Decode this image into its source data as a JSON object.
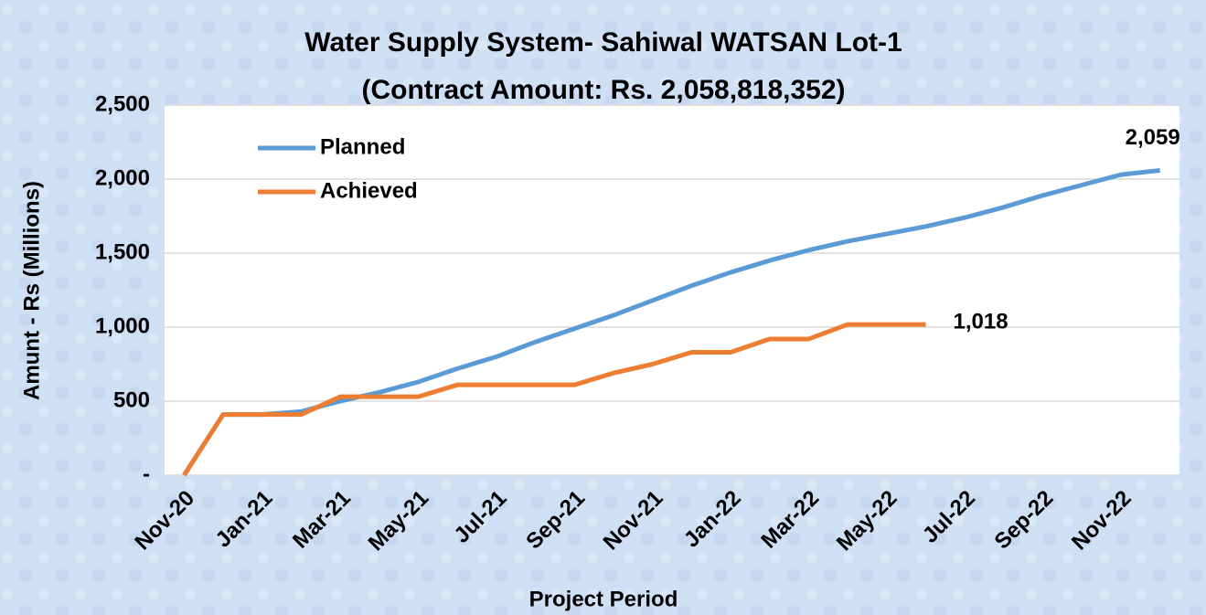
{
  "chart_data": {
    "type": "line",
    "title": "Water Supply System- Sahiwal WATSAN Lot-1",
    "subtitle": "(Contract Amount: Rs. 2,058,818,352)",
    "x_label": "Project Period",
    "y_label": "Amunt - Rs (Millions)",
    "categories": [
      "Nov-20",
      null,
      "Jan-21",
      null,
      "Mar-21",
      null,
      "May-21",
      null,
      "Jul-21",
      null,
      "Sep-21",
      null,
      "Nov-21",
      null,
      "Jan-22",
      null,
      "Mar-22",
      null,
      "May-22",
      null,
      "Jul-22",
      null,
      "Sep-22",
      null,
      "Nov-22",
      null
    ],
    "series": [
      {
        "name": "Planned",
        "color": "#5b9bd5",
        "values": [
          0,
          410,
          410,
          430,
          500,
          560,
          630,
          720,
          800,
          900,
          990,
          1080,
          1180,
          1280,
          1370,
          1450,
          1520,
          1580,
          1630,
          1680,
          1740,
          1810,
          1890,
          1960,
          2030,
          2059
        ],
        "value_labels": [
          null,
          null,
          null,
          null,
          null,
          null,
          null,
          null,
          null,
          null,
          null,
          null,
          null,
          null,
          null,
          null,
          null,
          null,
          null,
          null,
          null,
          null,
          null,
          null,
          null,
          "2,059"
        ]
      },
      {
        "name": "Achieved",
        "color": "#ed7d31",
        "values": [
          0,
          410,
          410,
          410,
          530,
          530,
          530,
          610,
          610,
          610,
          610,
          690,
          750,
          830,
          830,
          920,
          920,
          1018,
          1018,
          1018,
          null,
          null,
          null,
          null,
          null,
          null
        ],
        "value_labels": [
          null,
          null,
          null,
          null,
          null,
          null,
          null,
          null,
          null,
          null,
          null,
          null,
          null,
          null,
          null,
          null,
          null,
          null,
          null,
          "1,018",
          null,
          null,
          null,
          null,
          null,
          null
        ]
      }
    ],
    "ylim": [
      0,
      2500
    ],
    "yticks": [
      {
        "value": 0,
        "label": "-"
      },
      500,
      {
        "value": 1000,
        "label": "1,000"
      },
      {
        "value": 1500,
        "label": "1,500"
      },
      {
        "value": 2000,
        "label": "2,000"
      },
      {
        "value": 2500,
        "label": "2,500"
      }
    ],
    "grid": true,
    "legend": "upper left"
  }
}
